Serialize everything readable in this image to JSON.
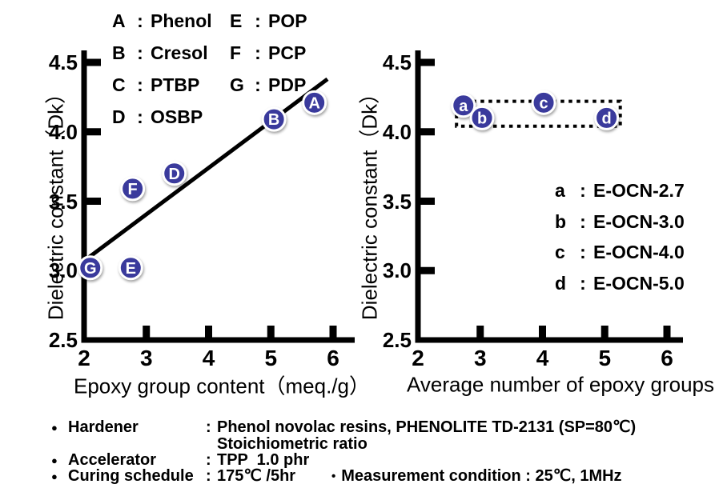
{
  "colors": {
    "background": "#ffffff",
    "axis": "#000000",
    "text": "#000000",
    "point_fill": "#3a3a9c",
    "point_ring": "#ffffff",
    "point_letter": "#ffffff",
    "trend_line": "#000000",
    "dotted_box": "#000000"
  },
  "chart_data": [
    {
      "type": "scatter",
      "id": "left-chart",
      "xlabel": "Epoxy group content（meq./g）",
      "ylabel": "Dielectric constant（Dk）",
      "xlim": [
        2,
        6.35
      ],
      "ylim": [
        2.5,
        4.59
      ],
      "xticks": [
        "2",
        "3",
        "4",
        "5",
        "6"
      ],
      "yticks": [
        "2.5",
        "3.0",
        "3.5",
        "4.0",
        "4.5"
      ],
      "grid": false,
      "points": [
        {
          "label": "A",
          "x": 5.7,
          "y": 4.21
        },
        {
          "label": "B",
          "x": 5.05,
          "y": 4.09
        },
        {
          "label": "D",
          "x": 3.45,
          "y": 3.7
        },
        {
          "label": "F",
          "x": 2.78,
          "y": 3.59
        },
        {
          "label": "E",
          "x": 2.75,
          "y": 3.02
        },
        {
          "label": "G",
          "x": 2.1,
          "y": 3.02
        }
      ],
      "trend_line": {
        "x1": 2.0,
        "y1": 3.07,
        "x2": 5.91,
        "y2": 4.38
      },
      "legend": {
        "position": "top-inside",
        "entries": [
          {
            "key": "A",
            "name": "Phenol"
          },
          {
            "key": "B",
            "name": "Cresol"
          },
          {
            "key": "C",
            "name": "PTBP"
          },
          {
            "key": "D",
            "name": "OSBP"
          },
          {
            "key": "E",
            "name": "POP"
          },
          {
            "key": "F",
            "name": "PCP"
          },
          {
            "key": "G",
            "name": "PDP"
          }
        ]
      }
    },
    {
      "type": "scatter",
      "id": "right-chart",
      "xlabel": "Average number of epoxy groups",
      "ylabel": "Dielectric constant（Dk）",
      "xlim": [
        2,
        6.35
      ],
      "ylim": [
        2.5,
        4.59
      ],
      "xticks": [
        "2",
        "3",
        "4",
        "5",
        "6"
      ],
      "yticks": [
        "2.5",
        "3.0",
        "3.5",
        "4.0",
        "4.5"
      ],
      "grid": false,
      "points": [
        {
          "label": "a",
          "x": 2.73,
          "y": 4.19
        },
        {
          "label": "b",
          "x": 3.03,
          "y": 4.1
        },
        {
          "label": "c",
          "x": 4.02,
          "y": 4.21
        },
        {
          "label": "d",
          "x": 5.03,
          "y": 4.1
        }
      ],
      "dotted_box": {
        "x1": 2.62,
        "y1": 4.04,
        "x2": 5.25,
        "y2": 4.22
      },
      "legend": {
        "position": "right-inside",
        "entries": [
          {
            "key": "a",
            "name": "E-OCN-2.7"
          },
          {
            "key": "b",
            "name": "E-OCN-3.0"
          },
          {
            "key": "c",
            "name": "E-OCN-4.0"
          },
          {
            "key": "d",
            "name": "E-OCN-5.0"
          }
        ]
      }
    }
  ],
  "footnotes": {
    "rows": [
      {
        "bullet": "●",
        "label": "Hardener",
        "colon": ":",
        "value": "Phenol novolac resins, PHENOLITE TD-2131 (SP=80℃)"
      },
      {
        "bullet": "",
        "label": "",
        "colon": "",
        "value": "Stoichiometric ratio"
      },
      {
        "bullet": "●",
        "label": "Accelerator",
        "colon": ":",
        "value": "TPP  1.0 phr"
      },
      {
        "bullet": "●",
        "label": "Curing schedule",
        "colon": ":",
        "value": "175℃ /5hr",
        "extra_bullet": "•",
        "extra": "Measurement condition : 25℃, 1MHz"
      }
    ]
  }
}
